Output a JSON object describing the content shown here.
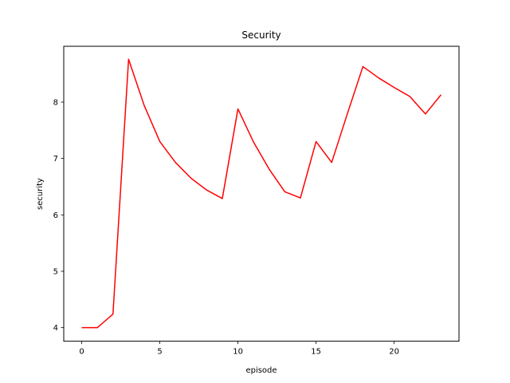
{
  "chart_data": {
    "type": "line",
    "title": "Security",
    "xlabel": "episode",
    "ylabel": "security",
    "xlim": [
      -1.15,
      24.15
    ],
    "ylim": [
      3.76,
      8.99
    ],
    "xticks": [
      0,
      5,
      10,
      15,
      20
    ],
    "yticks": [
      4,
      5,
      6,
      7,
      8
    ],
    "grid": false,
    "legend": "none",
    "series": [
      {
        "color": "#ff0000",
        "x": [
          0,
          1,
          2,
          3,
          4,
          5,
          6,
          7,
          8,
          9,
          10,
          11,
          12,
          13,
          14,
          15,
          16,
          17,
          18,
          19,
          20,
          21,
          22,
          23
        ],
        "y": [
          4.0,
          4.0,
          4.24,
          8.76,
          7.94,
          7.3,
          6.93,
          6.65,
          6.44,
          6.29,
          7.88,
          7.29,
          6.81,
          6.41,
          6.3,
          7.3,
          6.93,
          7.79,
          8.63,
          8.43,
          8.26,
          8.1,
          7.79,
          8.13
        ]
      }
    ]
  }
}
